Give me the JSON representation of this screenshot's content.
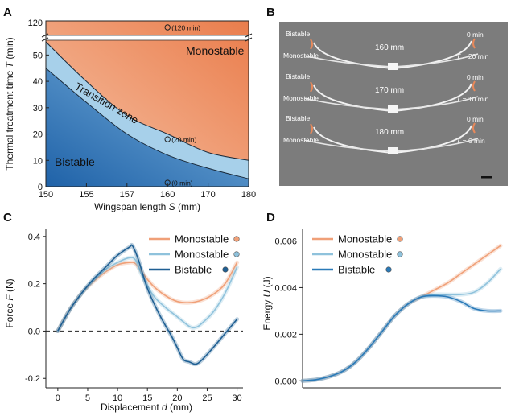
{
  "panels": {
    "A": {
      "letter": "A"
    },
    "B": {
      "letter": "B"
    },
    "C": {
      "letter": "C"
    },
    "D": {
      "letter": "D"
    }
  },
  "chart_data": [
    {
      "panel": "A",
      "type": "area",
      "xlabel_main": "Wingspan length ",
      "xlabel_sym": "S",
      "xlabel_unit": " (mm)",
      "ylabel_main": "Thermal treatment time ",
      "ylabel_sym": "T",
      "ylabel_unit": " (min)",
      "xticks": [
        "150",
        "155",
        "157",
        "160",
        "170",
        "180"
      ],
      "yticks": [
        "0",
        "10",
        "20",
        "30",
        "40",
        "50"
      ],
      "ytick_break": "120",
      "regions": {
        "mono": {
          "label": "Monostable",
          "color": "#ee8a5e"
        },
        "transition": {
          "label": "Transition zone",
          "color": "#9ccbe8"
        },
        "bistable": {
          "label": "Bistable",
          "color": "#3d86c8"
        }
      },
      "upper_boundary": [
        [
          150,
          55
        ],
        [
          155,
          40
        ],
        [
          157,
          27
        ],
        [
          160,
          20
        ],
        [
          170,
          13
        ],
        [
          180,
          10
        ]
      ],
      "lower_boundary": [
        [
          150,
          45
        ],
        [
          155,
          32
        ],
        [
          157,
          20
        ],
        [
          160,
          12
        ],
        [
          170,
          7
        ],
        [
          180,
          3
        ]
      ],
      "points": [
        {
          "x": 160,
          "y": 120,
          "label": "(120 min)"
        },
        {
          "x": 160,
          "y": 18,
          "label": "(20 min)"
        },
        {
          "x": 160,
          "y": 1.5,
          "label": "(0 min)"
        }
      ]
    },
    {
      "panel": "C",
      "type": "line",
      "xlabel_main": "Displacement ",
      "xlabel_sym": "d",
      "xlabel_unit": " (mm)",
      "ylabel_main": "Force ",
      "ylabel_sym": "F",
      "ylabel_unit": " (N)",
      "xlim": [
        -2,
        31
      ],
      "ylim": [
        -0.24,
        0.43
      ],
      "xticks": [
        0,
        5,
        10,
        15,
        20,
        25,
        30
      ],
      "yticks": [
        -0.2,
        0.0,
        0.2,
        0.4
      ],
      "ytick_labels": [
        "-0.2",
        "0.0",
        "0.2",
        "0.4"
      ],
      "series": [
        {
          "name": "Monostable",
          "color": "#f0a078",
          "x": [
            0,
            2,
            4,
            6,
            8,
            10,
            12,
            13,
            14,
            16,
            18,
            20,
            22,
            24,
            26,
            28,
            30
          ],
          "y": [
            0.0,
            0.09,
            0.16,
            0.21,
            0.25,
            0.28,
            0.29,
            0.285,
            0.25,
            0.19,
            0.15,
            0.125,
            0.12,
            0.13,
            0.155,
            0.2,
            0.29
          ]
        },
        {
          "name": "Monostable",
          "color": "#8fc2dc",
          "x": [
            0,
            2,
            4,
            6,
            8,
            10,
            12,
            13,
            14,
            16,
            18,
            20,
            22,
            23,
            24,
            26,
            28,
            30
          ],
          "y": [
            0.0,
            0.09,
            0.16,
            0.215,
            0.26,
            0.29,
            0.31,
            0.3,
            0.24,
            0.15,
            0.1,
            0.06,
            0.02,
            0.015,
            0.03,
            0.08,
            0.16,
            0.27
          ]
        },
        {
          "name": "Bistable",
          "color": "#1f5f93",
          "x": [
            0,
            2,
            4,
            6,
            8,
            10,
            12,
            12.5,
            13.5,
            15,
            17,
            19,
            20,
            21,
            22,
            23,
            24,
            26,
            28,
            30
          ],
          "y": [
            0.0,
            0.09,
            0.16,
            0.22,
            0.27,
            0.32,
            0.355,
            0.36,
            0.3,
            0.18,
            0.07,
            -0.02,
            -0.07,
            -0.12,
            -0.13,
            -0.14,
            -0.125,
            -0.07,
            -0.01,
            0.05
          ]
        }
      ],
      "zero_line": true,
      "legend_position": "top-right"
    },
    {
      "panel": "D",
      "type": "line",
      "xlabel_main": "",
      "ylabel_main": "Energy ",
      "ylabel_sym": "U",
      "ylabel_unit": " (J)",
      "xlim": [
        0,
        30
      ],
      "ylim": [
        -0.0003,
        0.0065
      ],
      "yticks": [
        0.0,
        0.002,
        0.004,
        0.006
      ],
      "ytick_labels": [
        "0.000",
        "0.002",
        "0.004",
        "0.006"
      ],
      "series": [
        {
          "name": "Monostable",
          "color": "#f0a078",
          "x": [
            0,
            2,
            4,
            6,
            8,
            10,
            12,
            14,
            16,
            18,
            20,
            22,
            24,
            26,
            28,
            30
          ],
          "y": [
            0.0,
            5e-05,
            0.00018,
            0.0004,
            0.0008,
            0.0014,
            0.0021,
            0.0028,
            0.0033,
            0.0036,
            0.0039,
            0.0042,
            0.0046,
            0.005,
            0.0054,
            0.0058
          ]
        },
        {
          "name": "Monostable",
          "color": "#8fc2dc",
          "x": [
            0,
            2,
            4,
            6,
            8,
            10,
            12,
            14,
            16,
            18,
            20,
            22,
            24,
            26,
            28,
            30
          ],
          "y": [
            0.0,
            5e-05,
            0.00018,
            0.0004,
            0.0008,
            0.0014,
            0.0021,
            0.0028,
            0.0033,
            0.0036,
            0.0037,
            0.0037,
            0.0037,
            0.0038,
            0.0042,
            0.0048
          ]
        },
        {
          "name": "Bistable",
          "color": "#2a7ab8",
          "x": [
            0,
            2,
            4,
            6,
            8,
            10,
            12,
            14,
            16,
            18,
            20,
            22,
            24,
            26,
            28,
            30
          ],
          "y": [
            0.0,
            5e-05,
            0.00018,
            0.0004,
            0.0008,
            0.0014,
            0.0021,
            0.0028,
            0.0033,
            0.0036,
            0.00365,
            0.0036,
            0.0034,
            0.0031,
            0.003,
            0.003
          ]
        }
      ],
      "legend_position": "top-left"
    }
  ],
  "photo_panel": {
    "rows": [
      {
        "left_top": "Bistable",
        "left_bottom": "Monostable",
        "length": "160 mm",
        "right_top": "0 min",
        "right_bottom": "T = 20 min"
      },
      {
        "left_top": "Bistable",
        "left_bottom": "Monostable",
        "length": "170 mm",
        "right_top": "0 min",
        "right_bottom": "T = 10 min"
      },
      {
        "left_top": "Bistable",
        "left_bottom": "Monostable",
        "length": "180 mm",
        "right_top": "0 min",
        "right_bottom": "T = 6 min"
      }
    ]
  }
}
